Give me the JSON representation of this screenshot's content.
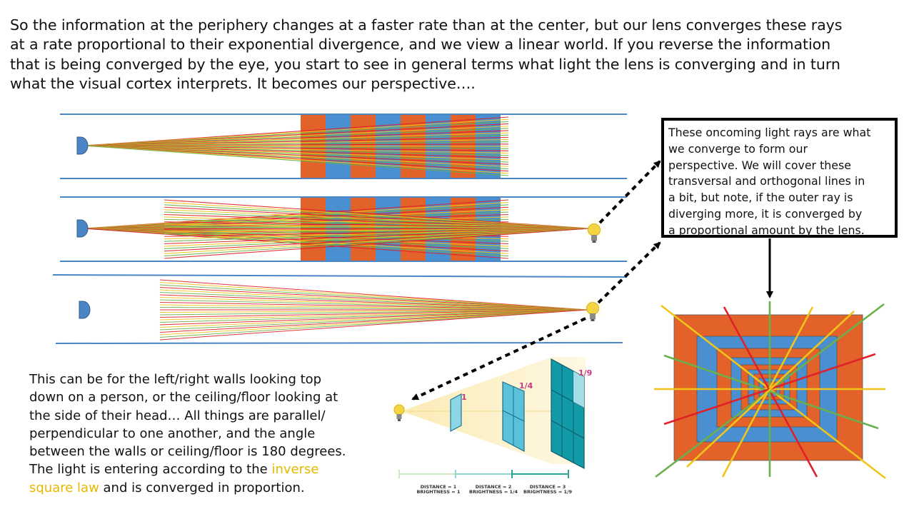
{
  "intro_text": "So the information at the periphery changes at a faster rate than at the center, but our lens converges these rays\nat a rate proportional to their exponential divergence, and we view a linear world.  If you reverse the information\nthat is being converged by the eye, you start to see in general terms what light the lens is converging and in turn\nwhat the visual cortex interprets.  It becomes our perspective….",
  "callout_text": "These oncoming light rays are what\nwe converge to form our\nperspective.  We will cover these\ntransversal and orthogonal lines in\na bit, but note, if the outer ray is\ndiverging more, it is converged by\na proportional amount by the lens.",
  "caption": {
    "text_before": "This can be for the left/right walls looking top\ndown on a person, or the ceiling/floor looking at\nthe side of their head…  All things are parallel/\nperpendicular to one another, and the angle\nbetween the walls or ceiling/floor is 180 degrees.\nThe light is entering according to the ",
    "highlight": "inverse\nsquare law",
    "text_after": " and is converged in proportion."
  },
  "inverse_square": {
    "panel_labels": [
      "1",
      "1/4",
      "1/9"
    ],
    "scale_labels": [
      {
        "distance": "DISTANCE = 1",
        "brightness": "BRIGHTNESS = 1"
      },
      {
        "distance": "DISTANCE = 2",
        "brightness": "BRIGHTNESS = 1/4"
      },
      {
        "distance": "DISTANCE = 3",
        "brightness": "BRIGHTNESS = 1/9"
      }
    ]
  },
  "colors": {
    "orange": "#e2622a",
    "blue": "#4a8fd0",
    "wall_line": "#4a86c6",
    "ray_red": "#e0202a",
    "ray_yellow": "#f0c419",
    "ray_green": "#6ab04c",
    "bulb": "#f5d442",
    "eye": "#4a86c6",
    "label_pink": "#c43b86",
    "teal": "#17a2b8",
    "highlight_text": "#e6b800"
  },
  "icons": [
    "eye-icon",
    "lightbulb-icon"
  ]
}
